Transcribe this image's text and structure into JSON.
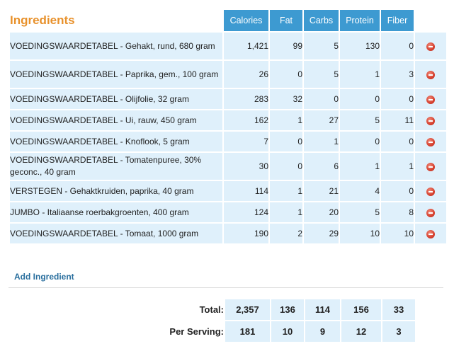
{
  "title": "Ingredients",
  "columns": [
    "Calories",
    "Fat",
    "Carbs",
    "Protein",
    "Fiber"
  ],
  "rows": [
    {
      "name": "VOEDINGSWAARDETABEL - Gehakt, rund, 680 gram",
      "values": [
        "1,421",
        "99",
        "5",
        "130",
        "0"
      ]
    },
    {
      "name": "VOEDINGSWAARDETABEL - Paprika, gem., 100 gram",
      "values": [
        "26",
        "0",
        "5",
        "1",
        "3"
      ]
    },
    {
      "name": "VOEDINGSWAARDETABEL - Olijfolie, 32 gram",
      "values": [
        "283",
        "32",
        "0",
        "0",
        "0"
      ]
    },
    {
      "name": "VOEDINGSWAARDETABEL - Ui, rauw, 450 gram",
      "values": [
        "162",
        "1",
        "27",
        "5",
        "11"
      ]
    },
    {
      "name": "VOEDINGSWAARDETABEL - Knoflook, 5 gram",
      "values": [
        "7",
        "0",
        "1",
        "0",
        "0"
      ]
    },
    {
      "name": "VOEDINGSWAARDETABEL - Tomatenpuree, 30% geconc., 40 gram",
      "values": [
        "30",
        "0",
        "6",
        "1",
        "1"
      ]
    },
    {
      "name": "VERSTEGEN - Gehaktkruiden, paprika, 40 gram",
      "values": [
        "114",
        "1",
        "21",
        "4",
        "0"
      ]
    },
    {
      "name": "JUMBO - Italiaanse roerbakgroenten, 400 gram",
      "values": [
        "124",
        "1",
        "20",
        "5",
        "8"
      ]
    },
    {
      "name": "VOEDINGSWAARDETABEL - Tomaat, 1000 gram",
      "values": [
        "190",
        "2",
        "29",
        "10",
        "10"
      ]
    }
  ],
  "add_label": "Add Ingredient",
  "totals": {
    "total_label": "Total:",
    "total_values": [
      "2,357",
      "136",
      "114",
      "156",
      "33"
    ],
    "serving_label": "Per Serving:",
    "serving_values": [
      "181",
      "10",
      "9",
      "12",
      "3"
    ]
  },
  "colors": {
    "header": "#3d9ad1",
    "cell": "#dff0fb",
    "title": "#e8912b",
    "link": "#2a6f9e"
  },
  "icons": {
    "delete": "delete-icon"
  }
}
